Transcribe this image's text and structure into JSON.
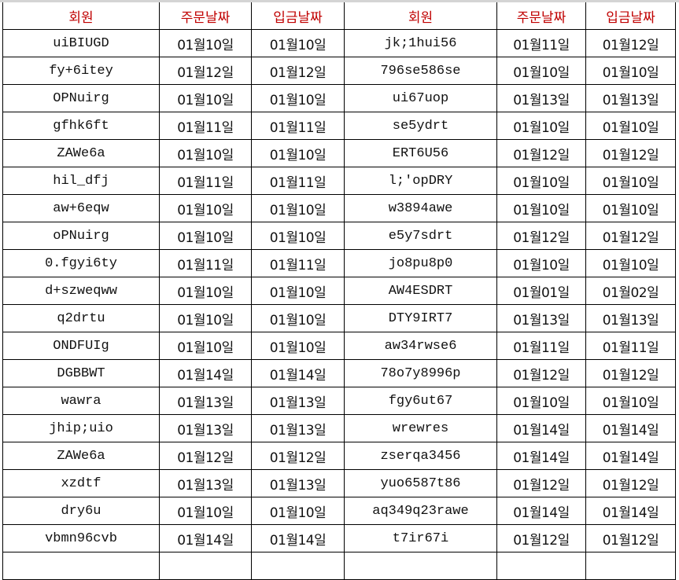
{
  "accent_color": "#c00000",
  "headers": [
    "회원",
    "주문날짜",
    "입금날짜",
    "회원",
    "주문날짜",
    "입금날짜"
  ],
  "rows": [
    [
      "uiBIUGD",
      "01월10일",
      "01월10일",
      "jk;1hui56",
      "01월11일",
      "01월12일"
    ],
    [
      "fy+6itey",
      "01월12일",
      "01월12일",
      "796se586se",
      "01월10일",
      "01월10일"
    ],
    [
      "OPNuirg",
      "01월10일",
      "01월10일",
      "ui67uop",
      "01월13일",
      "01월13일"
    ],
    [
      "gfhk6ft",
      "01월11일",
      "01월11일",
      "se5ydrt",
      "01월10일",
      "01월10일"
    ],
    [
      "ZAWe6a",
      "01월10일",
      "01월10일",
      "ERT6U56",
      "01월12일",
      "01월12일"
    ],
    [
      "hil_dfj",
      "01월11일",
      "01월11일",
      "l;'opDRY",
      "01월10일",
      "01월10일"
    ],
    [
      "aw+6eqw",
      "01월10일",
      "01월10일",
      "w3894awe",
      "01월10일",
      "01월10일"
    ],
    [
      "oPNuirg",
      "01월10일",
      "01월10일",
      "e5y7sdrt",
      "01월12일",
      "01월12일"
    ],
    [
      "0.fgyi6ty",
      "01월11일",
      "01월11일",
      "jo8pu8p0",
      "01월10일",
      "01월10일"
    ],
    [
      "d+szweqww",
      "01월10일",
      "01월10일",
      "AW4ESDRT",
      "01월01일",
      "01월02일"
    ],
    [
      "q2drtu",
      "01월10일",
      "01월10일",
      "DTY9IRT7",
      "01월13일",
      "01월13일"
    ],
    [
      "ONDFUIg",
      "01월10일",
      "01월10일",
      "aw34rwse6",
      "01월11일",
      "01월11일"
    ],
    [
      "DGBBWT",
      "01월14일",
      "01월14일",
      "78o7y8996p",
      "01월12일",
      "01월12일"
    ],
    [
      "wawra",
      "01월13일",
      "01월13일",
      "fgy6ut67",
      "01월10일",
      "01월10일"
    ],
    [
      "jhip;uio",
      "01월13일",
      "01월13일",
      "wrewres",
      "01월14일",
      "01월14일"
    ],
    [
      "ZAWe6a",
      "01월12일",
      "01월12일",
      "zserqa3456",
      "01월14일",
      "01월14일"
    ],
    [
      "xzdtf",
      "01월13일",
      "01월13일",
      "yuo6587t86",
      "01월12일",
      "01월12일"
    ],
    [
      "dry6u",
      "01월10일",
      "01월10일",
      "aq349q23rawe",
      "01월14일",
      "01월14일"
    ],
    [
      "vbmn96cvb",
      "01월14일",
      "01월14일",
      "t7ir67i",
      "01월12일",
      "01월12일"
    ],
    [
      "",
      "",
      "",
      "",
      "",
      ""
    ]
  ]
}
